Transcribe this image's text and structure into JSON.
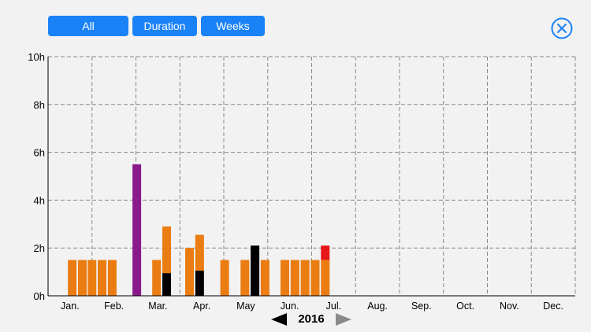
{
  "toolbar": {
    "all_label": "All",
    "duration_label": "Duration",
    "weeks_label": "Weeks"
  },
  "close_icon": "close-circle-icon",
  "year_nav": {
    "year": "2016",
    "prev_icon": "triangle-left-icon",
    "next_icon": "triangle-right-icon"
  },
  "colors": {
    "accent": "#1a82f7",
    "orange": "#ea7c12",
    "purple": "#8a1a8a",
    "black": "#000000",
    "red": "#e81717"
  },
  "chart_data": {
    "type": "bar",
    "stacked": true,
    "title": "",
    "xlabel": "",
    "ylabel": "",
    "ylim": [
      0,
      10
    ],
    "x_range": [
      0,
      12
    ],
    "yticks": [
      "0h",
      "2h",
      "4h",
      "6h",
      "8h",
      "10h"
    ],
    "ytick_values": [
      0,
      2,
      4,
      6,
      8,
      10
    ],
    "grid": true,
    "categories": [
      "Jan.",
      "Feb.",
      "Mar.",
      "Apr.",
      "May",
      "Jun.",
      "Jul.",
      "Aug.",
      "Sep.",
      "Oct.",
      "Nov.",
      "Dec."
    ],
    "series": [
      {
        "name": "orange",
        "color": "#ea7c12"
      },
      {
        "name": "purple",
        "color": "#8a1a8a"
      },
      {
        "name": "black",
        "color": "#000000"
      },
      {
        "name": "red",
        "color": "#e81717"
      }
    ],
    "weeks": [
      {
        "x": 0.55,
        "segments": [
          {
            "series": "orange",
            "value": 1.5
          }
        ]
      },
      {
        "x": 0.78,
        "segments": [
          {
            "series": "orange",
            "value": 1.5
          }
        ]
      },
      {
        "x": 1.0,
        "segments": [
          {
            "series": "orange",
            "value": 1.5
          }
        ]
      },
      {
        "x": 1.23,
        "segments": [
          {
            "series": "orange",
            "value": 1.5
          }
        ]
      },
      {
        "x": 1.46,
        "segments": [
          {
            "series": "orange",
            "value": 1.5
          }
        ]
      },
      {
        "x": 2.02,
        "segments": [
          {
            "series": "purple",
            "value": 5.5
          }
        ]
      },
      {
        "x": 2.47,
        "segments": [
          {
            "series": "orange",
            "value": 1.5
          }
        ]
      },
      {
        "x": 2.7,
        "segments": [
          {
            "series": "black",
            "value": 0.95
          },
          {
            "series": "orange",
            "value": 1.95
          }
        ]
      },
      {
        "x": 3.22,
        "segments": [
          {
            "series": "orange",
            "value": 2.0
          }
        ]
      },
      {
        "x": 3.45,
        "segments": [
          {
            "series": "black",
            "value": 1.05
          },
          {
            "series": "orange",
            "value": 1.5
          }
        ]
      },
      {
        "x": 4.02,
        "segments": [
          {
            "series": "orange",
            "value": 1.5
          }
        ]
      },
      {
        "x": 4.48,
        "segments": [
          {
            "series": "orange",
            "value": 1.5
          }
        ]
      },
      {
        "x": 4.71,
        "segments": [
          {
            "series": "black",
            "value": 2.1
          }
        ]
      },
      {
        "x": 4.94,
        "segments": [
          {
            "series": "orange",
            "value": 1.5
          }
        ]
      },
      {
        "x": 5.39,
        "segments": [
          {
            "series": "orange",
            "value": 1.5
          }
        ]
      },
      {
        "x": 5.62,
        "segments": [
          {
            "series": "orange",
            "value": 1.5
          }
        ]
      },
      {
        "x": 5.85,
        "segments": [
          {
            "series": "orange",
            "value": 1.5
          }
        ]
      },
      {
        "x": 6.08,
        "segments": [
          {
            "series": "orange",
            "value": 1.5
          }
        ]
      },
      {
        "x": 6.31,
        "segments": [
          {
            "series": "orange",
            "value": 1.5
          },
          {
            "series": "red",
            "value": 0.6
          }
        ]
      }
    ]
  }
}
